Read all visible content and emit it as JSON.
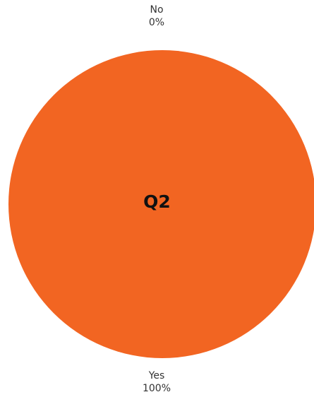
{
  "chart_data": {
    "type": "pie",
    "title": "Q2",
    "categories": [
      "No",
      "Yes"
    ],
    "values": [
      0,
      100
    ],
    "value_labels": [
      "0%",
      "100%"
    ],
    "colors": [
      "#1f77b4",
      "#f26522"
    ],
    "legend": "none"
  }
}
